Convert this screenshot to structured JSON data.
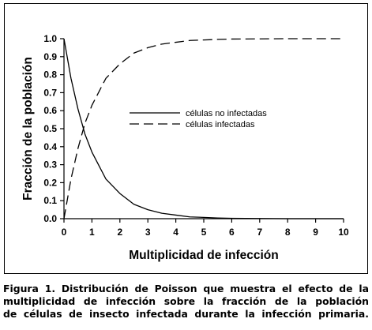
{
  "chart_data": {
    "type": "line",
    "title": "",
    "xlabel": "Multiplicidad de infección",
    "ylabel": "Fracción de la población",
    "xlim": [
      0,
      10
    ],
    "ylim": [
      0,
      1.0
    ],
    "x_ticks": [
      "0",
      "1",
      "2",
      "3",
      "4",
      "5",
      "6",
      "7",
      "8",
      "9",
      "10"
    ],
    "y_ticks": [
      "0.0",
      "0.1",
      "0.2",
      "0.3",
      "0.4",
      "0.5",
      "0.6",
      "0.7",
      "0.8",
      "0.9",
      "1.0"
    ],
    "grid": false,
    "legend_position": "center",
    "x": [
      0,
      0.25,
      0.5,
      0.75,
      1,
      1.5,
      2,
      2.5,
      3,
      3.5,
      4,
      4.5,
      5,
      5.5,
      6,
      7,
      8,
      9,
      10
    ],
    "series": [
      {
        "name": "células no infectadas",
        "style": "solid",
        "values": [
          1.0,
          0.78,
          0.61,
          0.47,
          0.37,
          0.22,
          0.14,
          0.08,
          0.05,
          0.03,
          0.02,
          0.01,
          0.007,
          0.004,
          0.002,
          0.001,
          0.0,
          0.0,
          0.0
        ]
      },
      {
        "name": "células infectadas",
        "style": "dashed",
        "values": [
          0.0,
          0.22,
          0.39,
          0.53,
          0.63,
          0.78,
          0.86,
          0.92,
          0.95,
          0.97,
          0.98,
          0.99,
          0.993,
          0.996,
          0.998,
          0.999,
          1.0,
          1.0,
          1.0
        ]
      }
    ]
  },
  "caption": {
    "lines": [
      "Figura 1. Distribución de Poisson que muestra el efecto de la",
      "multiplicidad de infección sobre la fracción de la población",
      "de células de insecto infectada durante la infección primaria."
    ]
  }
}
